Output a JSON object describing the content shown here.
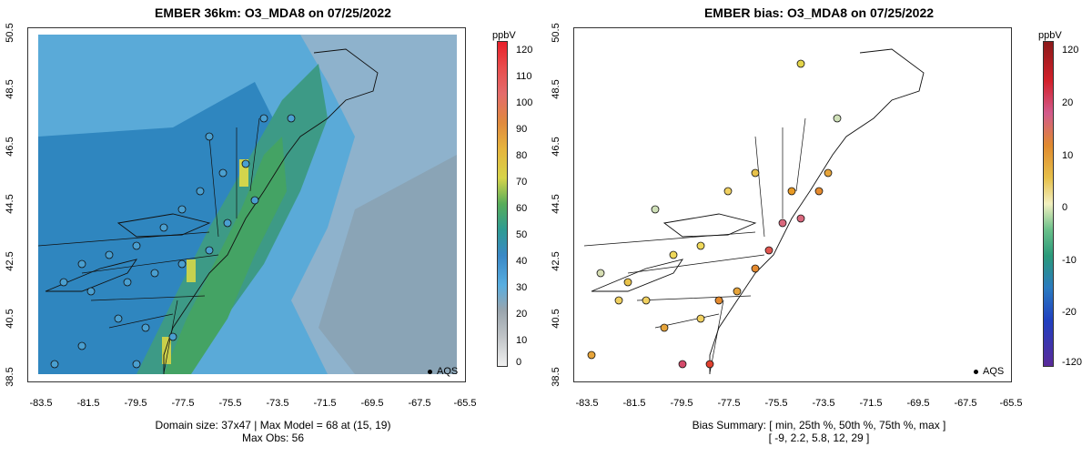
{
  "left": {
    "title": "EMBER 36km: O3_MDA8 on 07/25/2022",
    "lat_ticks": [
      "38.5",
      "40.5",
      "42.5",
      "44.5",
      "46.5",
      "48.5",
      "50.5"
    ],
    "lon_ticks": [
      "-83.5",
      "-81.5",
      "-79.5",
      "-77.5",
      "-75.5",
      "-73.5",
      "-71.5",
      "-69.5",
      "-67.5",
      "-65.5"
    ],
    "colorbar": {
      "unit": "ppbV",
      "ticks": [
        "120",
        "110",
        "100",
        "90",
        "80",
        "70",
        "60",
        "50",
        "40",
        "30",
        "20",
        "10",
        "0"
      ]
    },
    "legend_label": "AQS",
    "summary_line1": "Domain size: 37x47 | Max Model = 68 at (15, 19)",
    "summary_line2": "Max Obs: 56"
  },
  "right": {
    "title": "EMBER bias: O3_MDA8 on 07/25/2022",
    "lat_ticks": [
      "38.5",
      "40.5",
      "42.5",
      "44.5",
      "46.5",
      "48.5",
      "50.5"
    ],
    "lon_ticks": [
      "-83.5",
      "-81.5",
      "-79.5",
      "-77.5",
      "-75.5",
      "-73.5",
      "-71.5",
      "-69.5",
      "-67.5",
      "-65.5"
    ],
    "colorbar": {
      "unit": "ppbV",
      "ticks": [
        "120",
        "20",
        "10",
        "0",
        "-10",
        "-20",
        "-120"
      ]
    },
    "legend_label": "AQS",
    "summary_line1": "Bias Summary: [ min, 25th %, 50th %, 75th %, max ]",
    "summary_line2": "[ -9,   2.2,   5.8,   12,   29 ]"
  },
  "colors": {
    "ocean_gray": "#8fa9bb",
    "land_blue": "#3a8fc7",
    "plume_green": "#3aa067",
    "peak_yellow": "#d4d64c"
  }
}
